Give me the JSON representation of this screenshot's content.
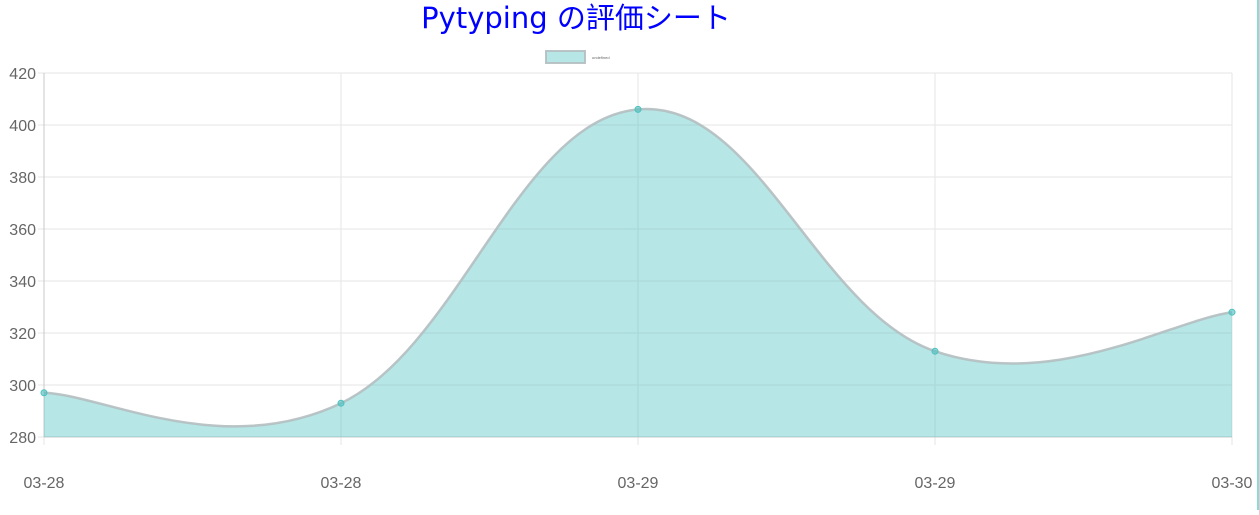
{
  "title": "Pytyping の評価シート",
  "colors": {
    "title": "#0000ff",
    "fill": "rgba(75,192,192,0.4)",
    "line": "rgba(180,190,192,0.9)",
    "point": "rgba(75,192,192,1)",
    "grid": "#e6e6e6",
    "axis": "#c8c8c8",
    "tick": "#666666"
  },
  "chart_data": {
    "type": "area",
    "title": "Pytyping の評価シート",
    "categories": [
      "03-28",
      "03-28",
      "03-29",
      "03-29",
      "03-30"
    ],
    "series": [
      {
        "name": "undefined",
        "values": [
          297,
          293,
          406,
          313,
          328
        ]
      }
    ],
    "ylim": [
      280,
      420
    ],
    "yticks": [
      280,
      300,
      320,
      340,
      360,
      380,
      400,
      420
    ],
    "xlabel": "",
    "ylabel": "",
    "grid": true,
    "legend": "top-center",
    "smooth": true
  }
}
